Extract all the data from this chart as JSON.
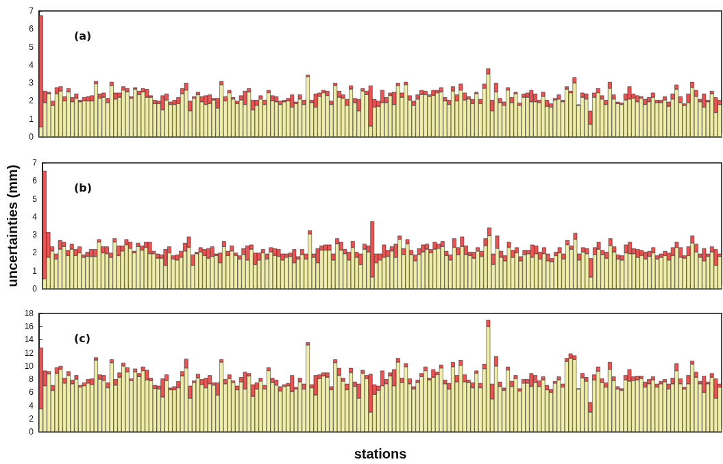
{
  "chart_data": [
    {
      "type": "bar",
      "stacked": true,
      "annotations": [
        "(a)"
      ],
      "tick_labels": "y",
      "grid": false,
      "ylim": [
        0,
        7
      ],
      "yticks": [
        0,
        1,
        2,
        3,
        4,
        5,
        6,
        7
      ],
      "categories": [
        null,
        null,
        null,
        null,
        null,
        null,
        null,
        null,
        null,
        null,
        null,
        null,
        null,
        null,
        null,
        null,
        null,
        null,
        null,
        null,
        null,
        null,
        null,
        null,
        null,
        null,
        null,
        null,
        null,
        null,
        null,
        null,
        null,
        null,
        null,
        null,
        null,
        null,
        null,
        null,
        null,
        null,
        null,
        null,
        null,
        null,
        null,
        null,
        null,
        null,
        null,
        null,
        null,
        null,
        null,
        null,
        null,
        null,
        null,
        null,
        null,
        null,
        null,
        null,
        null,
        null,
        null,
        null,
        null,
        null,
        null,
        null,
        null,
        null,
        null,
        null,
        null,
        null,
        null,
        null,
        null,
        null,
        null,
        null,
        null,
        null,
        null,
        null,
        null,
        null,
        null,
        null,
        null,
        null,
        null,
        null,
        null,
        null,
        null,
        null,
        null,
        null,
        null,
        null,
        null,
        null,
        null,
        null,
        null,
        null,
        null,
        null,
        null,
        null,
        null,
        null,
        null,
        null,
        null,
        null,
        null,
        null,
        null,
        null,
        null,
        null,
        null,
        null,
        null,
        null,
        null,
        null,
        null,
        null,
        null,
        null,
        null,
        null,
        null,
        null,
        null,
        null,
        null,
        null,
        null,
        null,
        null,
        null,
        null,
        null,
        null,
        null,
        null,
        null,
        null,
        null,
        null,
        null,
        null,
        null,
        null,
        null,
        null,
        null,
        null,
        null,
        null,
        null,
        null,
        null,
        null,
        null,
        null,
        null
      ],
      "series": [
        {
          "color": "#f0eea6",
          "values": [
            0.55,
            1.9,
            2.4,
            1.75,
            2.4,
            2.55,
            2.0,
            2.5,
            1.95,
            2.15,
            1.95,
            2.0,
            2.0,
            2.0,
            2.95,
            2.15,
            2.2,
            1.9,
            2.85,
            2.1,
            2.2,
            2.6,
            2.5,
            2.15,
            2.65,
            2.35,
            2.5,
            2.2,
            2.2,
            1.85,
            1.85,
            1.5,
            2.05,
            1.8,
            1.8,
            1.85,
            2.4,
            2.6,
            1.45,
            2.15,
            2.35,
            1.95,
            1.8,
            1.85,
            2.05,
            1.6,
            2.9,
            2.0,
            2.45,
            2.1,
            1.85,
            2.05,
            1.8,
            2.5,
            1.5,
            1.75,
            2.1,
            1.8,
            2.45,
            2.0,
            1.95,
            1.8,
            1.95,
            2.0,
            1.65,
            1.85,
            2.1,
            1.8,
            3.35,
            1.9,
            1.65,
            2.25,
            2.45,
            2.3,
            1.8,
            2.85,
            2.2,
            2.15,
            1.75,
            2.65,
            1.9,
            1.45,
            2.55,
            2.35,
            0.6,
            1.65,
            1.7,
            1.9,
            1.9,
            2.3,
            1.8,
            2.85,
            2.2,
            2.9,
            2.05,
            1.75,
            2.1,
            2.35,
            2.35,
            2.25,
            2.3,
            2.45,
            2.5,
            2.0,
            1.8,
            2.55,
            2.0,
            2.6,
            2.05,
            2.1,
            1.85,
            2.4,
            1.85,
            2.7,
            3.5,
            1.45,
            2.5,
            1.9,
            1.75,
            2.6,
            1.9,
            2.4,
            1.75,
            2.2,
            2.2,
            1.95,
            1.95,
            1.9,
            2.25,
            1.7,
            1.65,
            2.05,
            2.1,
            1.95,
            2.65,
            2.45,
            3.0,
            1.75,
            2.2,
            2.1,
            0.7,
            2.2,
            2.45,
            2.1,
            1.8,
            2.7,
            2.1,
            1.85,
            1.8,
            2.05,
            2.1,
            2.15,
            1.95,
            2.15,
            1.8,
            1.95,
            2.2,
            1.9,
            1.9,
            2.05,
            1.7,
            2.1,
            2.65,
            1.9,
            1.75,
            1.9,
            2.75,
            2.25,
            1.95,
            1.65,
            1.95,
            2.4,
            1.35,
            1.8
          ]
        },
        {
          "color": "#f05252",
          "values": [
            6.2,
            0.65,
            0.1,
            0.25,
            0.35,
            0.25,
            0.25,
            0.2,
            0.25,
            0.25,
            0.1,
            0.2,
            0.25,
            0.3,
            0.15,
            0.25,
            0.25,
            0.25,
            0.2,
            0.35,
            0.25,
            0.2,
            0.2,
            0.1,
            0.1,
            0.2,
            0.2,
            0.45,
            0.1,
            0.2,
            0.15,
            0.8,
            0.35,
            0.15,
            0.25,
            0.35,
            0.3,
            0.4,
            0.55,
            0.1,
            0.15,
            0.3,
            0.5,
            0.5,
            0.1,
            0.55,
            0.2,
            0.25,
            0.15,
            0.1,
            0.15,
            0.25,
            0.75,
            0.2,
            0.55,
            0.3,
            0.2,
            0.25,
            0.15,
            0.3,
            0.3,
            0.2,
            0.1,
            0.15,
            0.7,
            0.1,
            0.25,
            0.25,
            0.1,
            0.15,
            0.75,
            0.2,
            0.15,
            0.25,
            0.2,
            0.15,
            0.35,
            0.2,
            0.35,
            0.2,
            0.25,
            0.65,
            0.15,
            0.2,
            2.25,
            0.45,
            0.3,
            0.7,
            0.3,
            0.15,
            0.7,
            0.15,
            0.25,
            0.15,
            0.25,
            0.25,
            0.25,
            0.25,
            0.2,
            0.1,
            0.3,
            0.15,
            0.25,
            0.2,
            0.25,
            0.25,
            0.35,
            0.35,
            0.4,
            0.15,
            0.25,
            0.1,
            0.25,
            0.25,
            0.3,
            0.6,
            0.5,
            0.25,
            0.2,
            0.15,
            0.3,
            0.1,
            0.15,
            0.2,
            0.25,
            0.65,
            0.45,
            0.15,
            0.25,
            0.35,
            0.2,
            0.1,
            0.25,
            0.1,
            0.15,
            0.1,
            0.3,
            0.05,
            0.25,
            0.3,
            0.75,
            0.25,
            0.25,
            0.2,
            0.25,
            0.35,
            0.25,
            0.1,
            0.1,
            0.35,
            0.7,
            0.25,
            0.35,
            0.1,
            0.3,
            0.25,
            0.25,
            0.15,
            0.15,
            0.2,
            0.25,
            0.3,
            0.25,
            0.35,
            0.1,
            0.5,
            0.3,
            0.35,
            0.15,
            0.75,
            0.1,
            0.15,
            0.85,
            0.25
          ]
        }
      ]
    },
    {
      "type": "bar",
      "stacked": true,
      "annotations": [
        "(b)"
      ],
      "ylabel": "uncertainties (mm)",
      "tick_labels": "y",
      "grid": false,
      "ylim": [
        0,
        7
      ],
      "yticks": [
        0,
        1,
        2,
        3,
        4,
        5,
        6,
        7
      ],
      "categories": [
        null,
        null,
        null,
        null,
        null,
        null,
        null,
        null,
        null,
        null,
        null,
        null,
        null,
        null,
        null,
        null,
        null,
        null,
        null,
        null,
        null,
        null,
        null,
        null,
        null,
        null,
        null,
        null,
        null,
        null,
        null,
        null,
        null,
        null,
        null,
        null,
        null,
        null,
        null,
        null,
        null,
        null,
        null,
        null,
        null,
        null,
        null,
        null,
        null,
        null,
        null,
        null,
        null,
        null,
        null,
        null,
        null,
        null,
        null,
        null,
        null,
        null,
        null,
        null,
        null,
        null,
        null,
        null,
        null,
        null,
        null,
        null,
        null,
        null,
        null,
        null,
        null,
        null,
        null,
        null,
        null,
        null,
        null,
        null,
        null,
        null,
        null,
        null,
        null,
        null,
        null,
        null,
        null,
        null,
        null,
        null,
        null,
        null,
        null,
        null,
        null,
        null,
        null,
        null,
        null,
        null,
        null,
        null,
        null,
        null,
        null,
        null,
        null,
        null,
        null,
        null,
        null,
        null,
        null,
        null,
        null,
        null,
        null,
        null,
        null,
        null,
        null,
        null,
        null,
        null,
        null,
        null,
        null,
        null,
        null,
        null,
        null,
        null,
        null,
        null,
        null,
        null,
        null,
        null,
        null,
        null,
        null,
        null,
        null,
        null,
        null,
        null,
        null,
        null,
        null,
        null,
        null,
        null,
        null,
        null,
        null,
        null,
        null,
        null,
        null,
        null,
        null,
        null,
        null,
        null,
        null,
        null,
        null,
        null
      ],
      "series": [
        {
          "color": "#f0eea6",
          "values": [
            0.55,
            1.75,
            2.1,
            1.65,
            2.2,
            2.35,
            1.85,
            2.2,
            1.85,
            2.0,
            1.75,
            1.8,
            1.8,
            1.8,
            2.6,
            2.0,
            1.95,
            1.75,
            2.6,
            1.85,
            2.1,
            2.45,
            2.25,
            2.0,
            2.35,
            2.15,
            2.3,
            1.95,
            1.95,
            1.7,
            1.7,
            1.3,
            2.0,
            1.65,
            1.6,
            1.75,
            2.1,
            2.3,
            1.3,
            1.95,
            2.05,
            1.85,
            1.7,
            1.8,
            1.85,
            1.45,
            2.35,
            1.85,
            2.1,
            1.85,
            1.65,
            1.9,
            1.6,
            2.2,
            1.35,
            1.6,
            2.0,
            1.65,
            2.05,
            1.85,
            1.8,
            1.6,
            1.75,
            1.8,
            1.45,
            1.65,
            1.9,
            1.65,
            3.05,
            1.75,
            1.45,
            2.15,
            2.15,
            2.15,
            1.6,
            2.5,
            2.15,
            1.95,
            1.6,
            2.3,
            1.75,
            1.35,
            2.2,
            2.05,
            0.65,
            1.45,
            1.6,
            1.75,
            1.8,
            2.1,
            1.75,
            2.75,
            1.9,
            2.5,
            1.9,
            1.55,
            1.9,
            2.05,
            2.2,
            2.0,
            2.2,
            2.25,
            2.35,
            1.85,
            1.6,
            2.3,
            1.9,
            2.35,
            1.9,
            1.85,
            1.7,
            2.1,
            1.8,
            2.4,
            2.95,
            1.35,
            2.25,
            1.75,
            1.55,
            2.3,
            1.75,
            2.0,
            1.55,
            1.9,
            1.95,
            1.75,
            1.95,
            1.65,
            1.95,
            1.55,
            1.5,
            1.85,
            2.0,
            1.65,
            2.45,
            2.2,
            2.75,
            1.6,
            2.05,
            1.95,
            0.65,
            1.9,
            2.2,
            1.9,
            1.7,
            2.4,
            2.05,
            1.65,
            1.6,
            2.0,
            1.95,
            1.95,
            1.75,
            1.85,
            1.65,
            1.8,
            2.0,
            1.65,
            1.75,
            1.85,
            1.6,
            1.85,
            2.3,
            1.75,
            1.7,
            1.85,
            2.55,
            2.05,
            1.75,
            1.55,
            1.8,
            2.05,
            1.3,
            1.8
          ]
        },
        {
          "color": "#f05252",
          "values": [
            6.0,
            1.4,
            0.25,
            0.3,
            0.5,
            0.25,
            0.3,
            0.3,
            0.35,
            0.35,
            0.15,
            0.25,
            0.4,
            0.4,
            0.15,
            0.35,
            0.4,
            0.25,
            0.2,
            0.55,
            0.3,
            0.3,
            0.35,
            0.1,
            0.2,
            0.25,
            0.3,
            0.65,
            0.15,
            0.25,
            0.2,
            0.9,
            0.35,
            0.2,
            0.3,
            0.35,
            0.45,
            0.6,
            0.6,
            0.1,
            0.25,
            0.35,
            0.55,
            0.55,
            0.1,
            0.55,
            0.3,
            0.25,
            0.3,
            0.15,
            0.2,
            0.35,
            0.8,
            0.25,
            0.65,
            0.4,
            0.2,
            0.3,
            0.25,
            0.4,
            0.4,
            0.35,
            0.2,
            0.2,
            0.75,
            0.15,
            0.3,
            0.3,
            0.2,
            0.2,
            0.8,
            0.25,
            0.3,
            0.3,
            0.35,
            0.3,
            0.45,
            0.25,
            0.45,
            0.35,
            0.3,
            0.6,
            0.3,
            0.35,
            3.1,
            0.5,
            0.35,
            0.7,
            0.35,
            0.25,
            0.75,
            0.2,
            0.35,
            0.25,
            0.25,
            0.35,
            0.35,
            0.4,
            0.3,
            0.2,
            0.4,
            0.25,
            0.3,
            0.25,
            0.3,
            0.5,
            0.4,
            0.55,
            0.5,
            0.2,
            0.35,
            0.2,
            0.3,
            0.4,
            0.45,
            0.6,
            0.7,
            0.35,
            0.3,
            0.3,
            0.4,
            0.3,
            0.25,
            0.25,
            0.2,
            0.7,
            0.45,
            0.4,
            0.35,
            0.4,
            0.2,
            0.2,
            0.3,
            0.3,
            0.25,
            0.2,
            0.35,
            0.35,
            0.25,
            0.3,
            1.05,
            0.4,
            0.4,
            0.25,
            0.35,
            0.4,
            0.3,
            0.25,
            0.25,
            0.45,
            0.65,
            0.3,
            0.45,
            0.3,
            0.4,
            0.3,
            0.3,
            0.2,
            0.2,
            0.25,
            0.4,
            0.45,
            0.3,
            0.55,
            0.15,
            0.5,
            0.4,
            0.45,
            0.2,
            0.7,
            0.15,
            0.3,
            0.9,
            0.15
          ]
        }
      ]
    },
    {
      "type": "bar",
      "stacked": true,
      "annotations": [
        "(c)"
      ],
      "xlabel": "stations",
      "tick_labels": "y",
      "grid": false,
      "ylim": [
        0,
        18
      ],
      "yticks": [
        0,
        2,
        4,
        6,
        8,
        10,
        12,
        14,
        16,
        18
      ],
      "categories": [
        null,
        null,
        null,
        null,
        null,
        null,
        null,
        null,
        null,
        null,
        null,
        null,
        null,
        null,
        null,
        null,
        null,
        null,
        null,
        null,
        null,
        null,
        null,
        null,
        null,
        null,
        null,
        null,
        null,
        null,
        null,
        null,
        null,
        null,
        null,
        null,
        null,
        null,
        null,
        null,
        null,
        null,
        null,
        null,
        null,
        null,
        null,
        null,
        null,
        null,
        null,
        null,
        null,
        null,
        null,
        null,
        null,
        null,
        null,
        null,
        null,
        null,
        null,
        null,
        null,
        null,
        null,
        null,
        null,
        null,
        null,
        null,
        null,
        null,
        null,
        null,
        null,
        null,
        null,
        null,
        null,
        null,
        null,
        null,
        null,
        null,
        null,
        null,
        null,
        null,
        null,
        null,
        null,
        null,
        null,
        null,
        null,
        null,
        null,
        null,
        null,
        null,
        null,
        null,
        null,
        null,
        null,
        null,
        null,
        null,
        null,
        null,
        null,
        null,
        null,
        null,
        null,
        null,
        null,
        null,
        null,
        null,
        null,
        null,
        null,
        null,
        null,
        null,
        null,
        null,
        null,
        null,
        null,
        null,
        null,
        null,
        null,
        null,
        null,
        null,
        null,
        null,
        null,
        null,
        null,
        null,
        null,
        null,
        null,
        null,
        null,
        null,
        null,
        null,
        null,
        null,
        null,
        null,
        null,
        null,
        null,
        null,
        null,
        null,
        null,
        null,
        null,
        null,
        null,
        null,
        null,
        null,
        null,
        null
      ],
      "series": [
        {
          "color": "#f0eea6",
          "values": [
            3.5,
            7.0,
            8.8,
            6.3,
            8.9,
            9.5,
            7.4,
            8.6,
            7.3,
            8.0,
            6.8,
            7.0,
            7.4,
            7.2,
            10.9,
            8.0,
            7.8,
            6.7,
            10.5,
            7.1,
            8.3,
            10.0,
            9.1,
            7.8,
            9.1,
            8.4,
            9.3,
            7.9,
            7.8,
            6.6,
            6.5,
            5.3,
            7.8,
            6.4,
            6.4,
            6.7,
            8.5,
            9.7,
            5.1,
            7.5,
            8.2,
            7.2,
            6.7,
            7.3,
            7.1,
            5.6,
            10.6,
            7.3,
            8.1,
            7.5,
            6.4,
            7.6,
            6.5,
            8.5,
            5.4,
            6.5,
            7.7,
            6.5,
            9.3,
            7.5,
            7.1,
            6.2,
            6.9,
            7.0,
            6.1,
            6.5,
            7.6,
            6.5,
            13.2,
            6.7,
            5.6,
            8.1,
            8.5,
            8.3,
            6.4,
            10.5,
            8.6,
            7.7,
            6.4,
            9.0,
            6.9,
            5.1,
            8.9,
            8.1,
            3.0,
            5.7,
            6.3,
            7.0,
            7.3,
            8.5,
            7.0,
            10.6,
            7.5,
            9.9,
            7.3,
            6.5,
            7.5,
            8.4,
            9.3,
            7.9,
            8.3,
            8.7,
            9.7,
            7.3,
            6.5,
            9.9,
            7.6,
            10.1,
            7.6,
            7.5,
            6.7,
            8.9,
            6.7,
            9.6,
            16.0,
            5.0,
            10.0,
            6.9,
            6.3,
            9.4,
            6.9,
            8.1,
            6.2,
            7.4,
            7.4,
            6.9,
            7.5,
            6.9,
            7.9,
            6.4,
            6.0,
            7.4,
            7.9,
            6.8,
            10.7,
            11.2,
            11.0,
            6.5,
            8.2,
            7.7,
            3.0,
            7.9,
            9.2,
            7.5,
            6.8,
            9.5,
            7.8,
            6.5,
            6.3,
            7.9,
            7.7,
            7.8,
            7.9,
            8.1,
            6.8,
            7.3,
            7.9,
            6.8,
            7.3,
            7.6,
            6.5,
            7.3,
            9.3,
            7.3,
            6.5,
            7.3,
            10.3,
            8.3,
            7.3,
            6.0,
            7.3,
            8.3,
            5.1,
            6.8
          ]
        },
        {
          "color": "#f05252",
          "values": [
            9.3,
            2.3,
            0.4,
            0.8,
            0.9,
            0.5,
            0.8,
            0.6,
            0.6,
            0.6,
            0.3,
            0.5,
            0.6,
            0.9,
            0.4,
            0.7,
            0.8,
            0.8,
            0.5,
            0.9,
            0.7,
            0.5,
            0.7,
            0.3,
            0.5,
            0.5,
            0.6,
            1.5,
            0.4,
            0.5,
            0.5,
            2.8,
            0.9,
            0.3,
            0.5,
            1.0,
            0.7,
            1.4,
            1.9,
            0.3,
            0.6,
            0.8,
            1.5,
            1.3,
            0.4,
            1.9,
            0.4,
            0.7,
            0.6,
            0.3,
            0.6,
            0.7,
            2.6,
            0.4,
            1.8,
            1.0,
            0.5,
            0.6,
            0.5,
            0.7,
            0.8,
            0.7,
            0.3,
            0.4,
            2.5,
            0.3,
            0.6,
            0.8,
            0.4,
            0.5,
            3.0,
            0.6,
            0.5,
            0.7,
            0.5,
            0.5,
            1.1,
            0.5,
            0.9,
            0.7,
            0.7,
            2.2,
            0.5,
            0.5,
            5.8,
            1.5,
            0.7,
            2.3,
            0.7,
            0.5,
            2.5,
            0.6,
            0.7,
            0.5,
            0.8,
            0.4,
            0.4,
            0.5,
            0.6,
            0.3,
            1.2,
            0.4,
            0.5,
            0.6,
            0.9,
            0.7,
            1.0,
            0.8,
            1.1,
            0.4,
            0.8,
            0.4,
            0.7,
            0.7,
            1.0,
            2.3,
            1.5,
            0.7,
            0.4,
            0.5,
            0.8,
            0.5,
            0.4,
            0.6,
            0.6,
            2.0,
            1.1,
            0.9,
            0.5,
            0.7,
            0.5,
            0.3,
            0.5,
            0.5,
            0.5,
            0.7,
            0.6,
            0.1,
            0.7,
            0.6,
            1.5,
            0.8,
            0.7,
            0.6,
            0.7,
            1.1,
            0.6,
            0.4,
            0.3,
            0.7,
            1.8,
            0.6,
            0.6,
            0.4,
            0.8,
            0.7,
            0.5,
            0.5,
            0.4,
            0.4,
            0.8,
            0.9,
            1.1,
            0.8,
            0.3,
            1.3,
            0.5,
            0.8,
            0.4,
            2.5,
            0.3,
            0.6,
            3.0,
            0.5
          ]
        }
      ]
    }
  ]
}
